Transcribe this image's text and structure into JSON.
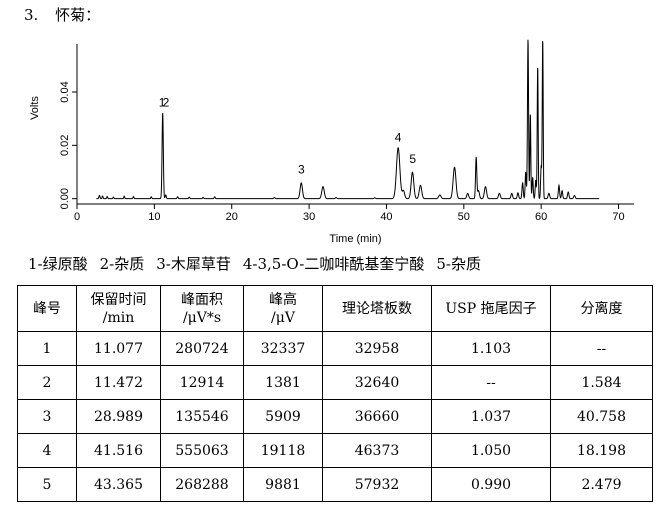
{
  "heading": {
    "number": "3.",
    "text": "怀菊："
  },
  "chart_data": {
    "type": "line",
    "xlabel": "Time (min)",
    "ylabel": "Volts",
    "xlim": [
      0,
      72
    ],
    "ylim": [
      -0.002,
      0.058
    ],
    "xticks": [
      0,
      10,
      20,
      30,
      40,
      50,
      60,
      70
    ],
    "yticks": [
      "0.00",
      "0.02",
      "0.04"
    ],
    "line_color": "#000000",
    "peak_labels": [
      {
        "label": "1",
        "x": 11.0,
        "y": 0.0345
      },
      {
        "label": "2",
        "x": 11.5,
        "y": 0.0345
      },
      {
        "label": "3",
        "x": 29.0,
        "y": 0.0095
      },
      {
        "label": "4",
        "x": 41.5,
        "y": 0.0215
      },
      {
        "label": "5",
        "x": 43.4,
        "y": 0.0133
      }
    ],
    "series": [
      {
        "peaks": [
          {
            "t": 2.9,
            "h": 0.0012,
            "w": 0.07
          },
          {
            "t": 3.3,
            "h": 0.001,
            "w": 0.06
          },
          {
            "t": 3.9,
            "h": 0.0008,
            "w": 0.06
          },
          {
            "t": 4.7,
            "h": 0.0006,
            "w": 0.06
          },
          {
            "t": 6.1,
            "h": 0.0009,
            "w": 0.06
          },
          {
            "t": 7.3,
            "h": 0.0008,
            "w": 0.06
          },
          {
            "t": 9.6,
            "h": 0.0007,
            "w": 0.06
          },
          {
            "t": 11.077,
            "h": 0.0323,
            "w": 0.08
          },
          {
            "t": 11.472,
            "h": 0.0014,
            "w": 0.07
          },
          {
            "t": 13.0,
            "h": 0.0007,
            "w": 0.07
          },
          {
            "t": 14.5,
            "h": 0.0006,
            "w": 0.07
          },
          {
            "t": 16.3,
            "h": 0.0005,
            "w": 0.07
          },
          {
            "t": 17.8,
            "h": 0.0007,
            "w": 0.07
          },
          {
            "t": 25.5,
            "h": 0.0004,
            "w": 0.1
          },
          {
            "t": 28.989,
            "h": 0.0059,
            "w": 0.15
          },
          {
            "t": 31.8,
            "h": 0.0045,
            "w": 0.16
          },
          {
            "t": 33.5,
            "h": 0.0004,
            "w": 0.1
          },
          {
            "t": 38.5,
            "h": 0.0003,
            "w": 0.1
          },
          {
            "t": 41.516,
            "h": 0.0191,
            "w": 0.22
          },
          {
            "t": 42.2,
            "h": 0.003,
            "w": 0.15
          },
          {
            "t": 43.365,
            "h": 0.0099,
            "w": 0.17
          },
          {
            "t": 44.4,
            "h": 0.005,
            "w": 0.16
          },
          {
            "t": 46.9,
            "h": 0.0014,
            "w": 0.15
          },
          {
            "t": 48.8,
            "h": 0.0118,
            "w": 0.18
          },
          {
            "t": 50.5,
            "h": 0.002,
            "w": 0.12
          },
          {
            "t": 51.6,
            "h": 0.0155,
            "w": 0.08
          },
          {
            "t": 51.9,
            "h": 0.003,
            "w": 0.12
          },
          {
            "t": 52.8,
            "h": 0.0045,
            "w": 0.14
          },
          {
            "t": 54.6,
            "h": 0.002,
            "w": 0.12
          },
          {
            "t": 56.2,
            "h": 0.002,
            "w": 0.1
          },
          {
            "t": 57.0,
            "h": 0.0022,
            "w": 0.09
          },
          {
            "t": 57.6,
            "h": 0.006,
            "w": 0.08
          },
          {
            "t": 58.0,
            "h": 0.01,
            "w": 0.07
          },
          {
            "t": 58.3,
            "h": 0.06,
            "w": 0.07
          },
          {
            "t": 58.6,
            "h": 0.032,
            "w": 0.06
          },
          {
            "t": 58.9,
            "h": 0.008,
            "w": 0.07
          },
          {
            "t": 59.3,
            "h": 0.007,
            "w": 0.07
          },
          {
            "t": 59.55,
            "h": 0.05,
            "w": 0.06
          },
          {
            "t": 60.0,
            "h": 0.012,
            "w": 0.07
          },
          {
            "t": 60.2,
            "h": 0.06,
            "w": 0.06
          },
          {
            "t": 61.0,
            "h": 0.002,
            "w": 0.1
          },
          {
            "t": 62.3,
            "h": 0.005,
            "w": 0.08
          },
          {
            "t": 62.7,
            "h": 0.003,
            "w": 0.08
          },
          {
            "t": 63.5,
            "h": 0.0025,
            "w": 0.09
          },
          {
            "t": 64.3,
            "h": 0.0012,
            "w": 0.1
          }
        ]
      }
    ]
  },
  "legend": [
    "1-绿原酸",
    "2-杂质",
    "3-木犀草苷",
    "4-3,5-O-二咖啡酰基奎宁酸",
    "5-杂质"
  ],
  "table": {
    "headers": [
      [
        "峰号",
        ""
      ],
      [
        "保留时间",
        "/min"
      ],
      [
        "峰面积",
        "/μV*s"
      ],
      [
        "峰高",
        "/μV"
      ],
      [
        "理论塔板数",
        ""
      ],
      [
        "USP 拖尾因子",
        ""
      ],
      [
        "分离度",
        ""
      ]
    ],
    "rows": [
      [
        "1",
        "11.077",
        "280724",
        "32337",
        "32958",
        "1.103",
        "--"
      ],
      [
        "2",
        "11.472",
        "12914",
        "1381",
        "32640",
        "--",
        "1.584"
      ],
      [
        "3",
        "28.989",
        "135546",
        "5909",
        "36660",
        "1.037",
        "40.758"
      ],
      [
        "4",
        "41.516",
        "555063",
        "19118",
        "46373",
        "1.050",
        "18.198"
      ],
      [
        "5",
        "43.365",
        "268288",
        "9881",
        "57932",
        "0.990",
        "2.479"
      ]
    ]
  }
}
